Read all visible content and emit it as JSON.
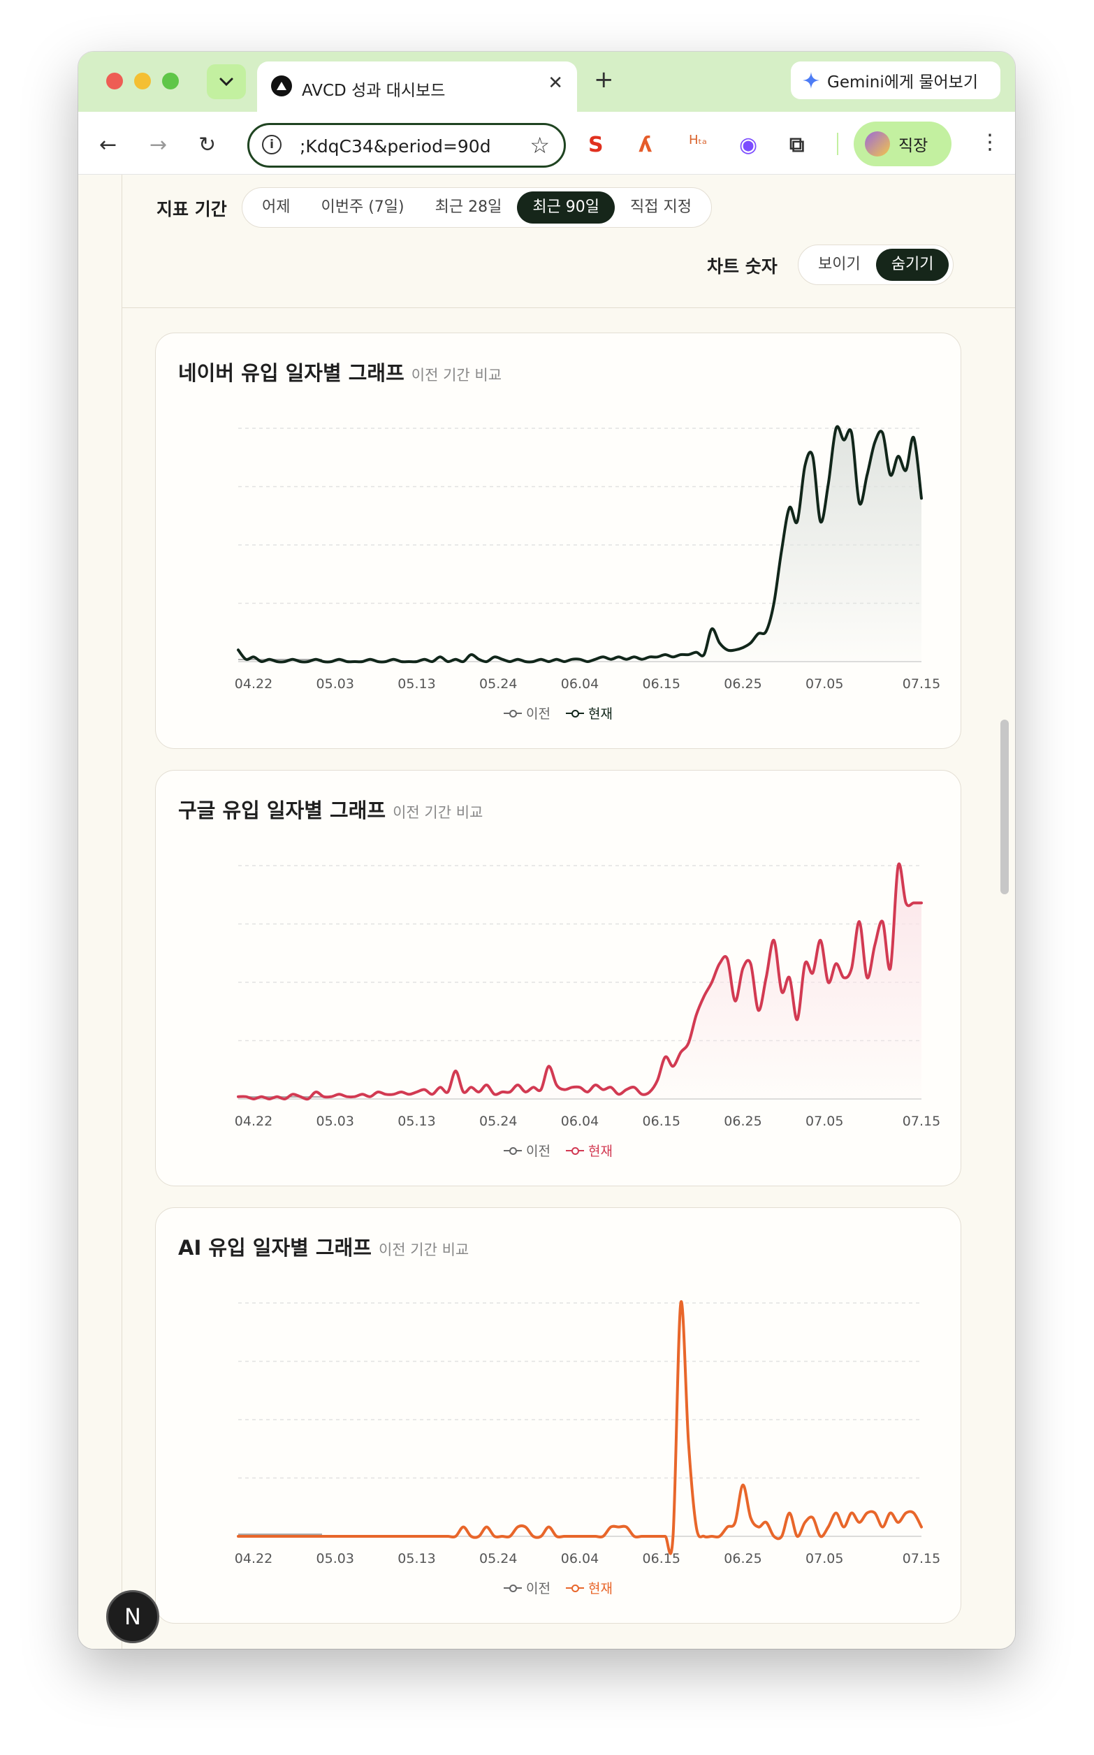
{
  "browser": {
    "tab_title": "AVCD 성과 대시보드",
    "close_glyph": "✕",
    "new_tab_glyph": "+",
    "gemini_label": "Gemini에게 물어보기",
    "url": "​;KdqC34&period=90d",
    "profile_name": "직장",
    "back_glyph": "←",
    "forward_glyph": "→",
    "reload_glyph": "↻",
    "star_glyph": "☆",
    "info_glyph": "i",
    "kebab_glyph": "⋮"
  },
  "extensions": [
    {
      "name": "seo-extension-icon",
      "glyph": "S",
      "color": "#e0301e"
    },
    {
      "name": "brush-extension-icon",
      "glyph": "ʎ",
      "color": "#e55c2a"
    },
    {
      "name": "htag-extension-icon",
      "glyph": "Hₜₐ",
      "color": "#d9622b"
    },
    {
      "name": "color-picker-extension-icon",
      "glyph": "◉",
      "color": "#7c4dff"
    },
    {
      "name": "puzzle-extension-icon",
      "glyph": "⧉",
      "color": "#333333"
    }
  ],
  "filters": {
    "period_label": "지표 기간",
    "periods": [
      {
        "label": "어제",
        "active": false
      },
      {
        "label": "이번주 (7일)",
        "active": false
      },
      {
        "label": "최근 28일",
        "active": false
      },
      {
        "label": "최근 90일",
        "active": true
      },
      {
        "label": "직접 지정",
        "active": false
      }
    ],
    "chart_numbers_label": "차트 숫자",
    "chart_numbers": [
      {
        "label": "보이기",
        "active": false
      },
      {
        "label": "숨기기",
        "active": true
      }
    ]
  },
  "subtitle": "이전 기간 비교",
  "legend": {
    "previous": "이전",
    "current": "현재",
    "previous_color": "#666666"
  },
  "next_badge": "N",
  "chart_data": [
    {
      "type": "area",
      "title": "네이버 유입 일자별 그래프",
      "color": "#11261a",
      "fill_color": "#dfe3df",
      "x_ticks": [
        "04.22",
        "05.03",
        "05.13",
        "05.24",
        "06.04",
        "06.15",
        "06.25",
        "07.05",
        "07.15"
      ],
      "ylim": [
        0,
        100
      ],
      "grid": true,
      "series": [
        {
          "name": "현재",
          "x": [
            0,
            1,
            2,
            3,
            4,
            5,
            6,
            7,
            8,
            9,
            10,
            11,
            12,
            13,
            14,
            15,
            16,
            17,
            18,
            19,
            20,
            21,
            22,
            23,
            24,
            25,
            26,
            27,
            28,
            29,
            30,
            31,
            32,
            33,
            34,
            35,
            36,
            37,
            38,
            39,
            40,
            41,
            42,
            43,
            44,
            45,
            46,
            47,
            48,
            49,
            50,
            51,
            52,
            53,
            54,
            55,
            56,
            57,
            58,
            59,
            60,
            61,
            62,
            63,
            64,
            65,
            66,
            67,
            68,
            69,
            70,
            71,
            72,
            73,
            74,
            75,
            76,
            77,
            78,
            79,
            80,
            81,
            82,
            83,
            84,
            85,
            86,
            87,
            88
          ],
          "values": [
            5,
            1,
            2,
            0,
            1,
            0,
            0,
            1,
            0,
            0,
            1,
            0,
            0,
            1,
            0,
            0,
            0,
            1,
            0,
            0,
            1,
            0,
            0,
            0,
            1,
            0,
            2,
            0,
            1,
            0,
            3,
            1,
            0,
            2,
            1,
            0,
            1,
            0,
            0,
            1,
            0,
            1,
            0,
            1,
            1,
            0,
            1,
            2,
            1,
            2,
            1,
            2,
            1,
            2,
            2,
            3,
            2,
            3,
            3,
            4,
            3,
            14,
            8,
            5,
            5,
            6,
            8,
            12,
            13,
            25,
            48,
            66,
            60,
            84,
            88,
            60,
            76,
            100,
            95,
            98,
            68,
            80,
            94,
            98,
            80,
            88,
            82,
            96,
            70
          ]
        }
      ]
    },
    {
      "type": "area",
      "title": "구글 유입 일자별 그래프",
      "color": "#d23a52",
      "fill_color": "#fbe4e8",
      "x_ticks": [
        "04.22",
        "05.03",
        "05.13",
        "05.24",
        "06.04",
        "06.15",
        "06.25",
        "07.05",
        "07.15"
      ],
      "ylim": [
        0,
        100
      ],
      "grid": true,
      "series": [
        {
          "name": "현재",
          "x": [
            0,
            1,
            2,
            3,
            4,
            5,
            6,
            7,
            8,
            9,
            10,
            11,
            12,
            13,
            14,
            15,
            16,
            17,
            18,
            19,
            20,
            21,
            22,
            23,
            24,
            25,
            26,
            27,
            28,
            29,
            30,
            31,
            32,
            33,
            34,
            35,
            36,
            37,
            38,
            39,
            40,
            41,
            42,
            43,
            44,
            45,
            46,
            47,
            48,
            49,
            50,
            51,
            52,
            53,
            54,
            55,
            56,
            57,
            58,
            59,
            60,
            61,
            62,
            63,
            64,
            65,
            66,
            67,
            68,
            69,
            70,
            71,
            72,
            73,
            74,
            75,
            76,
            77,
            78,
            79,
            80,
            81,
            82,
            83,
            84,
            85,
            86,
            87,
            88
          ],
          "values": [
            1,
            1,
            0,
            1,
            0,
            1,
            0,
            2,
            1,
            0,
            3,
            1,
            1,
            2,
            1,
            1,
            2,
            1,
            3,
            2,
            2,
            3,
            2,
            3,
            4,
            2,
            5,
            3,
            12,
            3,
            5,
            3,
            6,
            2,
            3,
            3,
            6,
            3,
            5,
            4,
            14,
            6,
            4,
            5,
            5,
            3,
            6,
            4,
            5,
            2,
            4,
            5,
            2,
            3,
            8,
            18,
            14,
            20,
            24,
            36,
            44,
            50,
            58,
            60,
            42,
            56,
            58,
            38,
            52,
            68,
            46,
            52,
            34,
            58,
            54,
            68,
            50,
            58,
            52,
            56,
            76,
            52,
            66,
            76,
            56,
            100,
            84,
            84,
            84
          ]
        }
      ]
    },
    {
      "type": "line",
      "title": "AI 유입 일자별 그래프",
      "color": "#e8662a",
      "fill_color": "",
      "x_ticks": [
        "04.22",
        "05.03",
        "05.13",
        "05.24",
        "06.04",
        "06.15",
        "06.25",
        "07.05",
        "07.15"
      ],
      "ylim": [
        0,
        100
      ],
      "grid": true,
      "series": [
        {
          "name": "현재",
          "x": [
            0,
            1,
            2,
            3,
            4,
            5,
            6,
            7,
            8,
            9,
            10,
            11,
            12,
            13,
            14,
            15,
            16,
            17,
            18,
            19,
            20,
            21,
            22,
            23,
            24,
            25,
            26,
            27,
            28,
            29,
            30,
            31,
            32,
            33,
            34,
            35,
            36,
            37,
            38,
            39,
            40,
            41,
            42,
            43,
            44,
            45,
            46,
            47,
            48,
            49,
            50,
            51,
            52,
            53,
            54,
            55,
            56,
            57,
            58,
            59,
            60,
            61,
            62,
            63,
            64,
            65,
            66,
            67,
            68,
            69,
            70,
            71,
            72,
            73,
            74,
            75,
            76,
            77,
            78,
            79,
            80,
            81,
            82,
            83,
            84,
            85,
            86,
            87,
            88
          ],
          "values": [
            0,
            0,
            0,
            0,
            0,
            0,
            0,
            0,
            0,
            0,
            0,
            0,
            0,
            0,
            0,
            0,
            0,
            0,
            0,
            0,
            0,
            0,
            0,
            0,
            0,
            0,
            0,
            0,
            0,
            4,
            0,
            0,
            4,
            0,
            0,
            0,
            4,
            4,
            0,
            0,
            4,
            0,
            0,
            0,
            0,
            0,
            0,
            0,
            4,
            4,
            4,
            0,
            0,
            0,
            0,
            0,
            0,
            100,
            40,
            4,
            0,
            0,
            0,
            4,
            6,
            22,
            8,
            4,
            6,
            0,
            0,
            10,
            0,
            6,
            8,
            0,
            4,
            10,
            4,
            10,
            6,
            10,
            10,
            4,
            10,
            6,
            10,
            10,
            4
          ]
        }
      ]
    }
  ]
}
